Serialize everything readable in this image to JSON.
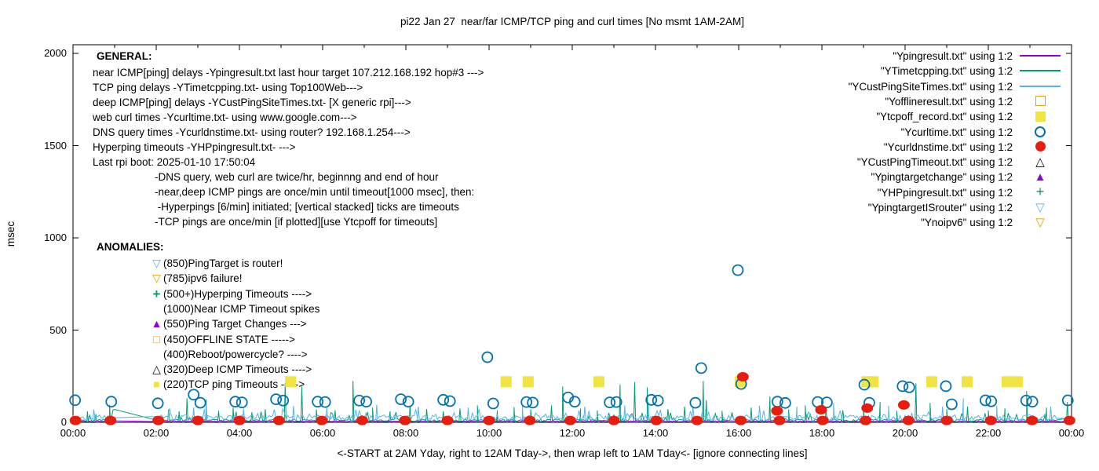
{
  "title": "pi22 Jan 27  near/far ICMP/TCP ping and curl times [No msmt 1AM-2AM]",
  "xlabel": "<-START at 2AM Yday, right to 12AM Tday->, then wrap left to 1AM Tday<- [ignore connecting lines]",
  "ylabel": "msec",
  "colors": {
    "near_icmp": "#9400D3",
    "tcp_ping": "#009E73",
    "deep_icmp": "#56B4E9",
    "offline": "#E69F00",
    "tcp_timeout": "#F0E442",
    "curl": "#0072B2",
    "dns": "#E51E10",
    "deep_timeout": "#000000",
    "axis": "#000000"
  },
  "legend": [
    {
      "label": "\"Ypingresult.txt\" using 1:2",
      "sample": "line",
      "color": "#9400D3"
    },
    {
      "label": "\"YTimetcpping.txt\" using 1:2",
      "sample": "line",
      "color": "#009E73"
    },
    {
      "label": "\"YCustPingSiteTimes.txt\" using 1:2",
      "sample": "line",
      "color": "#56B4E9"
    },
    {
      "label": "\"Yofflineresult.txt\" using 1:2",
      "sample": "square-open",
      "color": "#E69F00"
    },
    {
      "label": "\"Ytcpoff_record.txt\" using 1:2",
      "sample": "square-fill",
      "color": "#F0E442"
    },
    {
      "label": "\"Ycurltime.txt\" using 1:2",
      "sample": "circle-open",
      "color": "#0072B2"
    },
    {
      "label": "\"Ycurldnstime.txt\" using 1:2",
      "sample": "circle-fill",
      "color": "#E51E10"
    },
    {
      "label": "\"YCustPingTimeout.txt\" using 1:2",
      "sample": "glyph",
      "glyph": "△",
      "color": "#000000"
    },
    {
      "label": "\"Ypingtargetchange\" using 1:2",
      "sample": "glyph",
      "glyph": "▲",
      "color": "#9400D3"
    },
    {
      "label": "\"YHPpingresult.txt\" using 1:2",
      "sample": "glyph",
      "glyph": "+",
      "color": "#009E73"
    },
    {
      "label": "\"YpingtargetISrouter\" using 1:2",
      "sample": "glyph",
      "glyph": "▽",
      "color": "#56B4E9"
    },
    {
      "label": "\"Ynoipv6\" using 1:2",
      "sample": "glyph",
      "glyph": "▽",
      "color": "#E69F00"
    }
  ],
  "general": {
    "heading": "GENERAL:",
    "lines": [
      "near ICMP[ping] delays -Ypingresult.txt last hour target 107.212.168.192 hop#3 --->",
      "TCP ping delays -YTimetcpping.txt- using Top100Web--->",
      "deep ICMP[ping] delays -YCustPingSiteTimes.txt- [X generic rpi]--->",
      "web curl times -Ycurltime.txt- using www.google.com--->",
      "DNS query times -Ycurldnstime.txt- using router? 192.168.1.254--->",
      "Hyperping timeouts -YHPpingresult.txt- --->",
      "Last rpi boot: 2025-01-10 17:50:04"
    ],
    "indented": [
      "-DNS query, web curl are twice/hr, beginnng and end of hour",
      "-near,deep ICMP pings are once/min until timeout[1000 msec], then:",
      " -Hyperpings [6/min] initiated; [vertical stacked] ticks are timeouts",
      "-TCP pings are once/min [if plotted][use Ytcpoff for timeouts]"
    ]
  },
  "anomalies": {
    "heading": "ANOMALIES:",
    "rows": [
      {
        "glyph": "▽",
        "color": "#56B4E9",
        "text": "(850)PingTarget is router!"
      },
      {
        "glyph": "▽",
        "color": "#E69F00",
        "text": "(785)ipv6 failure!"
      },
      {
        "glyph": "+",
        "color": "#009E73",
        "text": "(500+)Hyperping Timeouts ---->"
      },
      {
        "glyph": "",
        "color": "#000000",
        "text": "(1000)Near ICMP Timeout spikes"
      },
      {
        "glyph": "▲",
        "color": "#9400D3",
        "text": "(550)Ping Target Changes --->"
      },
      {
        "glyph": "□",
        "color": "#E69F00",
        "text": "(450)OFFLINE STATE ----->"
      },
      {
        "glyph": "",
        "color": "#000000",
        "text": "(400)Reboot/powercycle? ---->"
      },
      {
        "glyph": "△",
        "color": "#000000",
        "text": "(320)Deep ICMP Timeouts ---->"
      },
      {
        "glyph": "■",
        "color": "#F0E442",
        "text": "(220)TCP ping Timeouts ----->"
      }
    ]
  },
  "chart_data": {
    "type": "line",
    "title": "pi22 Jan 27  near/far ICMP/TCP ping and curl times [No msmt 1AM-2AM]",
    "xlabel": "<-START at 2AM Yday, right to 12AM Tday->, then wrap left to 1AM Tday<- [ignore connecting lines]",
    "ylabel": "msec",
    "x_ticks": [
      "00:00",
      "02:00",
      "04:00",
      "06:00",
      "08:00",
      "10:00",
      "12:00",
      "14:00",
      "16:00",
      "18:00",
      "20:00",
      "22:00",
      "00:00"
    ],
    "y_ticks": [
      "0",
      "500",
      "1000",
      "1500",
      "2000"
    ],
    "y_tick_values": [
      0,
      500,
      1000,
      1500,
      2000
    ],
    "xlim_hours": [
      0,
      24
    ],
    "ylim": [
      0,
      2050
    ],
    "gap_hours": [
      1,
      2
    ],
    "grid": false,
    "legend_position": "top-right-inside",
    "series": [
      {
        "name": "Ypingresult.txt",
        "style": "line",
        "color": "#9400D3",
        "baseline": 3,
        "noise": 5,
        "burst_p": 0,
        "burst": 0,
        "seed": 101,
        "gap_value": 8,
        "spikes": []
      },
      {
        "name": "YTimetcpping.txt",
        "style": "line",
        "color": "#009E73",
        "baseline": 5,
        "noise": 12,
        "burst_p": 0.1,
        "burst": 55,
        "seed": 202,
        "gap_value": 70,
        "spikes": [
          [
            0.35,
            60
          ],
          [
            0.55,
            45
          ],
          [
            0.88,
            95
          ],
          [
            2.3,
            70
          ],
          [
            2.55,
            60
          ],
          [
            2.74,
            130
          ],
          [
            3.2,
            125
          ],
          [
            3.5,
            62
          ],
          [
            3.85,
            80
          ],
          [
            4.3,
            55
          ],
          [
            4.62,
            72
          ],
          [
            5.1,
            215
          ],
          [
            5.5,
            195
          ],
          [
            5.85,
            70
          ],
          [
            6.3,
            65
          ],
          [
            6.73,
            225
          ],
          [
            7.2,
            80
          ],
          [
            7.62,
            60
          ],
          [
            8.1,
            90
          ],
          [
            8.5,
            72
          ],
          [
            8.9,
            60
          ],
          [
            9.3,
            75
          ],
          [
            9.72,
            92
          ],
          [
            10.2,
            65
          ],
          [
            10.6,
            82
          ],
          [
            11.0,
            70
          ],
          [
            11.5,
            92
          ],
          [
            11.77,
            195
          ],
          [
            12.2,
            75
          ],
          [
            12.6,
            65
          ],
          [
            13.15,
            205
          ],
          [
            13.5,
            218
          ],
          [
            13.8,
            190
          ],
          [
            14.3,
            72
          ],
          [
            14.7,
            85
          ],
          [
            15.15,
            225
          ],
          [
            15.22,
            120
          ],
          [
            15.6,
            62
          ],
          [
            16.3,
            80
          ],
          [
            16.75,
            140
          ],
          [
            17.2,
            70
          ],
          [
            17.6,
            92
          ],
          [
            18.1,
            75
          ],
          [
            18.5,
            65
          ],
          [
            19.0,
            82
          ],
          [
            19.4,
            110
          ],
          [
            19.8,
            62
          ],
          [
            20.26,
            212
          ],
          [
            20.6,
            105
          ],
          [
            21.0,
            72
          ],
          [
            21.5,
            85
          ],
          [
            22.0,
            65
          ],
          [
            22.4,
            75
          ],
          [
            22.92,
            170
          ],
          [
            23.4,
            80
          ],
          [
            23.9,
            110
          ]
        ]
      },
      {
        "name": "YCustPingSiteTimes.txt",
        "style": "line",
        "color": "#56B4E9",
        "baseline": 10,
        "noise": 30,
        "burst_p": 0.12,
        "burst": 40,
        "seed": 303,
        "gap_value": 25,
        "spikes": [
          [
            0.5,
            70
          ],
          [
            2.9,
            80
          ],
          [
            3.2,
            105
          ],
          [
            4.1,
            75
          ],
          [
            5.3,
            90
          ],
          [
            6.1,
            80
          ],
          [
            7.3,
            95
          ],
          [
            8.3,
            85
          ],
          [
            9.5,
            80
          ],
          [
            10.8,
            90
          ],
          [
            12.3,
            85
          ],
          [
            13.26,
            92
          ],
          [
            13.83,
            110
          ],
          [
            14.9,
            85
          ],
          [
            16.5,
            90
          ],
          [
            17.4,
            85
          ],
          [
            18.28,
            105
          ],
          [
            19.6,
            90
          ],
          [
            20.9,
            85
          ],
          [
            21.4,
            130
          ],
          [
            22.2,
            90
          ],
          [
            23.5,
            85
          ]
        ]
      },
      {
        "name": "Yofflineresult.txt",
        "style": "square-open",
        "color": "#E69F00",
        "points": []
      },
      {
        "name": "Ytcpoff_record.txt",
        "style": "square-fill",
        "color": "#F0E442",
        "points": [
          [
            5.23,
            220
          ],
          [
            10.41,
            220
          ],
          [
            10.94,
            220
          ],
          [
            12.64,
            220
          ],
          [
            16.04,
            220
          ],
          [
            19.08,
            220
          ],
          [
            19.23,
            220
          ],
          [
            20.64,
            220
          ],
          [
            21.49,
            220
          ],
          [
            22.45,
            220
          ],
          [
            22.7,
            220
          ]
        ]
      },
      {
        "name": "Ycurltime.txt",
        "style": "circle-open",
        "color": "#0072B2",
        "points": [
          [
            0.05,
            120
          ],
          [
            0.92,
            112
          ],
          [
            2.04,
            103
          ],
          [
            2.9,
            150
          ],
          [
            3.06,
            106
          ],
          [
            3.9,
            112
          ],
          [
            4.06,
            108
          ],
          [
            4.88,
            125
          ],
          [
            5.05,
            118
          ],
          [
            5.88,
            112
          ],
          [
            6.06,
            110
          ],
          [
            6.88,
            118
          ],
          [
            7.05,
            112
          ],
          [
            7.88,
            125
          ],
          [
            8.06,
            112
          ],
          [
            8.9,
            122
          ],
          [
            9.06,
            115
          ],
          [
            9.96,
            353
          ],
          [
            10.1,
            102
          ],
          [
            10.9,
            110
          ],
          [
            11.05,
            107
          ],
          [
            11.9,
            135
          ],
          [
            12.06,
            112
          ],
          [
            12.9,
            108
          ],
          [
            13.06,
            110
          ],
          [
            13.9,
            122
          ],
          [
            14.06,
            118
          ],
          [
            14.96,
            106
          ],
          [
            15.1,
            294
          ],
          [
            15.98,
            825
          ],
          [
            16.06,
            208
          ],
          [
            16.93,
            112
          ],
          [
            17.12,
            105
          ],
          [
            17.9,
            110
          ],
          [
            18.12,
            108
          ],
          [
            19.02,
            204
          ],
          [
            19.14,
            106
          ],
          [
            19.94,
            196
          ],
          [
            20.1,
            190
          ],
          [
            20.98,
            196
          ],
          [
            21.12,
            98
          ],
          [
            21.93,
            119
          ],
          [
            22.07,
            114
          ],
          [
            22.91,
            118
          ],
          [
            23.06,
            112
          ],
          [
            23.91,
            119
          ]
        ]
      },
      {
        "name": "Ycurldnstime.txt",
        "style": "circle-fill",
        "color": "#E51E10",
        "points": [
          [
            0.06,
            10
          ],
          [
            0.9,
            10
          ],
          [
            2.05,
            10
          ],
          [
            3.0,
            10
          ],
          [
            4.0,
            10
          ],
          [
            4.95,
            10
          ],
          [
            5.98,
            10
          ],
          [
            6.95,
            10
          ],
          [
            7.98,
            10
          ],
          [
            9.0,
            10
          ],
          [
            10.0,
            10
          ],
          [
            10.98,
            10
          ],
          [
            11.95,
            10
          ],
          [
            13.0,
            10
          ],
          [
            14.02,
            10
          ],
          [
            15.0,
            10
          ],
          [
            16.05,
            10
          ],
          [
            16.98,
            10
          ],
          [
            18.02,
            10
          ],
          [
            19.05,
            10
          ],
          [
            20.08,
            10
          ],
          [
            21.0,
            10
          ],
          [
            22.06,
            10
          ],
          [
            23.05,
            10
          ],
          [
            23.95,
            10
          ],
          [
            16.1,
            247
          ],
          [
            16.92,
            62
          ],
          [
            17.98,
            68
          ],
          [
            19.09,
            77
          ],
          [
            19.97,
            94
          ]
        ]
      },
      {
        "name": "YCustPingTimeout.txt",
        "style": "triangle-open",
        "color": "#000000",
        "points": []
      },
      {
        "name": "Ypingtargetchange",
        "style": "triangle-fill",
        "color": "#9400D3",
        "points": []
      },
      {
        "name": "YHPpingresult.txt",
        "style": "plus",
        "color": "#009E73",
        "points": []
      },
      {
        "name": "YpingtargetISrouter",
        "style": "triangle-down-open",
        "color": "#56B4E9",
        "points": []
      },
      {
        "name": "Ynoipv6",
        "style": "triangle-down-open",
        "color": "#E69F00",
        "points": []
      }
    ]
  }
}
